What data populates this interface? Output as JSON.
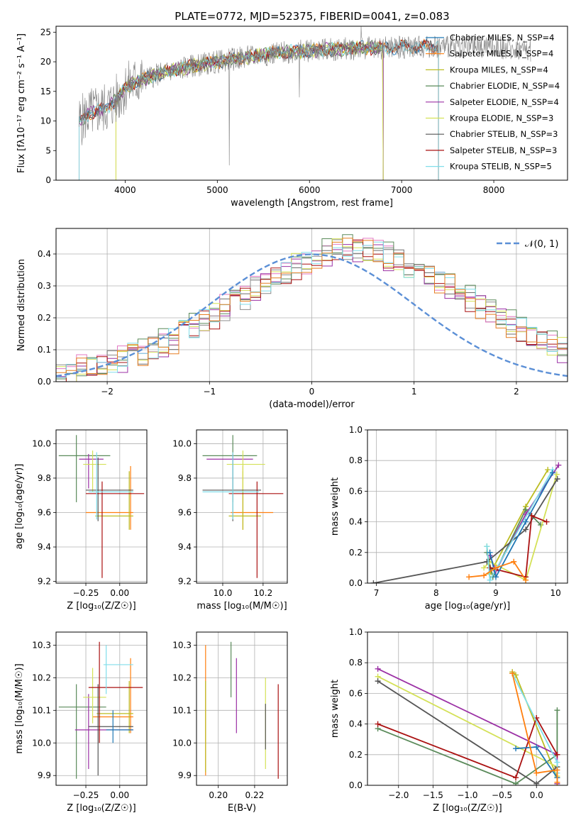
{
  "colors": {
    "grid": "#b0b0b0",
    "spectrum": "#808080",
    "ssp": [
      "#1f77b4",
      "#ff7f0e",
      "#bcbd22",
      "#5a8a5a",
      "#9b30a5",
      "#d4e157",
      "#555555",
      "#aa1111",
      "#80deea"
    ],
    "hist": [
      "#6e6e6e",
      "#e377c2",
      "#8c8c8c",
      "#5a8a5a",
      "#9b30a5",
      "#d4e157",
      "#aa1111",
      "#80deea",
      "#e67e22"
    ],
    "normal": "#5b8fd6"
  },
  "chart_data": [
    {
      "id": "spectrum",
      "type": "line",
      "title": "PLATE=0772, MJD=52375, FIBERID=0041, z=0.083",
      "xlabel": "wavelength [Angstrom, rest frame]",
      "ylabel": "Flux [fλ10⁻¹⁷ erg cm⁻² s⁻¹ A⁻¹]",
      "xlim": [
        3250,
        8800
      ],
      "ylim": [
        0,
        26
      ],
      "xticks": [
        4000,
        5000,
        6000,
        7000,
        8000
      ],
      "yticks": [
        0,
        5,
        10,
        15,
        20,
        25
      ],
      "data_range": [
        3500,
        8400
      ],
      "legend": [
        "Chabrier MILES, N_SSP=4",
        "Salpeter MILES, N_SSP=4",
        "Kroupa MILES, N_SSP=4",
        "Chabrier ELODIE, N_SSP=4",
        "Salpeter ELODIE, N_SSP=4",
        "Kroupa ELODIE, N_SSP=3",
        "Chabrier STELIB, N_SSP=3",
        "Salpeter STELIB, N_SSP=3",
        "Kroupa STELIB, N_SSP=5"
      ],
      "continuum": {
        "x": [
          3500,
          3600,
          3700,
          3800,
          3900,
          4000,
          4100,
          4300,
          4500,
          4800,
          5200,
          5600,
          6000,
          6400,
          6800,
          7200,
          7600,
          8000,
          8400
        ],
        "y": [
          9.8,
          11.2,
          11.8,
          12.3,
          13.5,
          15.6,
          16.5,
          17.6,
          18.5,
          19.5,
          20.5,
          21.4,
          21.9,
          22.2,
          22.4,
          22.6,
          22.6,
          22.5,
          22.0
        ]
      },
      "model_cutoffs": {
        "start": [
          3500,
          3500,
          3900,
          3500,
          3500,
          3900,
          3500,
          3500,
          3500
        ],
        "end": [
          7400,
          7400,
          6800,
          6800,
          6800,
          6800,
          7400,
          7400,
          7400
        ]
      }
    },
    {
      "id": "residuals",
      "type": "line",
      "xlabel": "(data-model)/error",
      "ylabel": "Normed distribution",
      "xlim": [
        -2.5,
        2.5
      ],
      "ylim": [
        0,
        0.48
      ],
      "xticks": [
        -2,
        -1,
        0,
        1,
        2
      ],
      "yticks": [
        0.0,
        0.1,
        0.2,
        0.3,
        0.4
      ],
      "legend": [
        "𝒩(0, 1)"
      ],
      "bin_width": 0.1,
      "bin_start": -2.5,
      "base": [
        0.02,
        0.03,
        0.04,
        0.05,
        0.05,
        0.06,
        0.07,
        0.08,
        0.09,
        0.1,
        0.12,
        0.13,
        0.15,
        0.17,
        0.19,
        0.21,
        0.23,
        0.25,
        0.27,
        0.29,
        0.31,
        0.33,
        0.35,
        0.36,
        0.37,
        0.39,
        0.4,
        0.41,
        0.42,
        0.42,
        0.41,
        0.4,
        0.39,
        0.38,
        0.36,
        0.35,
        0.33,
        0.31,
        0.3,
        0.28,
        0.26,
        0.24,
        0.22,
        0.2,
        0.18,
        0.16,
        0.14,
        0.13,
        0.11,
        0.1,
        0.08,
        0.07,
        0.06,
        0.05,
        0.04,
        0.04,
        0.03,
        0.03,
        0.02,
        0.02
      ],
      "offsets": [
        0.0,
        0.02,
        -0.015,
        0.03,
        -0.02,
        0.01,
        -0.025,
        0.015,
        -0.01,
        0.025
      ]
    },
    {
      "id": "age_vs_Z",
      "type": "scatter",
      "xlabel": "Z [log₁₀(Z/Z☉)]",
      "ylabel": "age  [log₁₀(age/yr)]",
      "xlim": [
        -0.47,
        0.2
      ],
      "ylim": [
        9.19,
        10.08
      ],
      "xticks": [
        -0.25,
        0.0
      ],
      "yticks": [
        9.2,
        9.4,
        9.6,
        9.8,
        10.0
      ],
      "points": [
        {
          "x": 0.08,
          "y": 9.6,
          "xl": -0.25,
          "xh": 0.1,
          "yl": 9.5,
          "yh": 9.87
        },
        {
          "x": 0.07,
          "y": 9.58,
          "xl": -0.18,
          "xh": 0.1,
          "yl": 9.5,
          "yh": 9.84
        },
        {
          "x": -0.32,
          "y": 9.93,
          "xl": -0.45,
          "xh": -0.07,
          "yl": 9.66,
          "yh": 10.05
        },
        {
          "x": -0.23,
          "y": 9.91,
          "xl": -0.3,
          "xh": -0.12,
          "yl": 9.74,
          "yh": 9.94
        },
        {
          "x": -0.2,
          "y": 9.88,
          "xl": -0.27,
          "xh": -0.1,
          "yl": 9.72,
          "yh": 9.96
        },
        {
          "x": -0.16,
          "y": 9.73,
          "xl": -0.25,
          "xh": 0.1,
          "yl": 9.55,
          "yh": 9.92
        },
        {
          "x": -0.13,
          "y": 9.71,
          "xl": -0.25,
          "xh": 0.18,
          "yl": 9.22,
          "yh": 9.78
        },
        {
          "x": -0.17,
          "y": 9.72,
          "xl": -0.23,
          "xh": 0.1,
          "yl": 9.56,
          "yh": 9.95
        }
      ]
    },
    {
      "id": "age_vs_mass",
      "type": "scatter",
      "xlabel": "mass [log₁₀(M/M☉)]",
      "ylabel": "",
      "xlim": [
        9.87,
        10.32
      ],
      "ylim": [
        9.19,
        10.08
      ],
      "xticks": [
        10.0,
        10.2
      ],
      "yticks": [
        9.2,
        9.4,
        9.6,
        9.8,
        10.0
      ],
      "points": [
        {
          "x": 10.1,
          "y": 9.6,
          "xl": 10.04,
          "xh": 10.25,
          "yl": 9.5,
          "yh": 9.87
        },
        {
          "x": 10.1,
          "y": 9.58,
          "xl": 10.03,
          "xh": 10.19,
          "yl": 9.5,
          "yh": 9.84
        },
        {
          "x": 10.05,
          "y": 9.93,
          "xl": 9.9,
          "xh": 10.17,
          "yl": 9.66,
          "yh": 10.05
        },
        {
          "x": 10.05,
          "y": 9.91,
          "xl": 9.92,
          "xh": 10.15,
          "yl": 9.74,
          "yh": 9.94
        },
        {
          "x": 10.1,
          "y": 9.88,
          "xl": 10.02,
          "xh": 10.21,
          "yl": 9.72,
          "yh": 9.96
        },
        {
          "x": 10.05,
          "y": 9.73,
          "xl": 9.9,
          "xh": 10.19,
          "yl": 9.55,
          "yh": 9.92
        },
        {
          "x": 10.17,
          "y": 9.71,
          "xl": 10.03,
          "xh": 10.3,
          "yl": 9.22,
          "yh": 9.78
        },
        {
          "x": 10.05,
          "y": 9.72,
          "xl": 9.9,
          "xh": 10.18,
          "yl": 9.56,
          "yh": 9.95
        }
      ]
    },
    {
      "id": "mass_weight_vs_age",
      "type": "line",
      "xlabel": "age  [log₁₀(age/yr)]",
      "ylabel": "mass weight",
      "xlim": [
        6.85,
        10.2
      ],
      "ylim": [
        0,
        1
      ],
      "xticks": [
        7,
        8,
        9,
        10
      ],
      "yticks": [
        0.0,
        0.2,
        0.4,
        0.6,
        0.8,
        1.0
      ],
      "series": [
        {
          "x": [
            8.85,
            8.9,
            9.5,
            9.87
          ],
          "y": [
            0.24,
            0.06,
            0.5,
            0.74
          ]
        },
        {
          "x": [
            8.85,
            8.95,
            9.5,
            9.75
          ],
          "y": [
            0.2,
            0.04,
            0.48,
            0.38
          ]
        },
        {
          "x": [
            8.9,
            9.0,
            9.5,
            10.05
          ],
          "y": [
            0.18,
            0.08,
            0.45,
            0.77
          ]
        },
        {
          "x": [
            8.8,
            8.9,
            9.5,
            10.02
          ],
          "y": [
            0.1,
            0.14,
            0.02,
            0.71
          ]
        },
        {
          "x": [
            6.95,
            8.85,
            9.5,
            10.03
          ],
          "y": [
            0.0,
            0.14,
            0.35,
            0.68
          ]
        },
        {
          "x": [
            8.9,
            9.5,
            9.6,
            9.85
          ],
          "y": [
            0.1,
            0.04,
            0.44,
            0.4
          ]
        },
        {
          "x": [
            8.85,
            8.9,
            9.95
          ],
          "y": [
            0.24,
            0.02,
            0.74
          ]
        },
        {
          "x": [
            8.9,
            9.0,
            9.5,
            9.95
          ],
          "y": [
            0.2,
            0.04,
            0.4,
            0.72
          ]
        },
        {
          "x": [
            8.55,
            8.8,
            9.0,
            9.3,
            9.5
          ],
          "y": [
            0.04,
            0.05,
            0.1,
            0.14,
            0.02
          ]
        }
      ]
    },
    {
      "id": "mass_vs_Z",
      "type": "scatter",
      "xlabel": "Z [log₁₀(Z/Z☉)]",
      "ylabel": "mass [log₁₀(M/M☉)]",
      "xlim": [
        -0.47,
        0.2
      ],
      "ylim": [
        9.87,
        10.34
      ],
      "xticks": [
        -0.25,
        0.0
      ],
      "yticks": [
        9.9,
        10.0,
        10.1,
        10.2,
        10.3
      ],
      "points": [
        {
          "x": 0.08,
          "y": 10.08,
          "xl": -0.2,
          "xh": 0.1,
          "yl": 10.03,
          "yh": 10.26
        },
        {
          "x": 0.07,
          "y": 10.09,
          "xl": -0.17,
          "xh": 0.1,
          "yl": 10.03,
          "yh": 10.19
        },
        {
          "x": -0.32,
          "y": 10.11,
          "xl": -0.45,
          "xh": -0.1,
          "yl": 9.89,
          "yh": 10.18
        },
        {
          "x": -0.23,
          "y": 10.04,
          "xl": -0.33,
          "xh": 0.1,
          "yl": 9.92,
          "yh": 10.15
        },
        {
          "x": -0.2,
          "y": 10.14,
          "xl": -0.27,
          "xh": -0.1,
          "yl": 10.06,
          "yh": 10.23
        },
        {
          "x": -0.16,
          "y": 10.05,
          "xl": -0.23,
          "xh": 0.1,
          "yl": 9.9,
          "yh": 10.18
        },
        {
          "x": -0.15,
          "y": 10.17,
          "xl": -0.23,
          "xh": 0.17,
          "yl": 10.0,
          "yh": 10.31
        },
        {
          "x": -0.1,
          "y": 10.24,
          "xl": -0.12,
          "xh": 0.1,
          "yl": 10.15,
          "yh": 10.3
        },
        {
          "x": -0.05,
          "y": 10.04,
          "xl": -0.1,
          "xh": 0.1,
          "yl": 10.0,
          "yh": 10.1
        }
      ]
    },
    {
      "id": "mass_vs_ebv",
      "type": "scatter",
      "xlabel": "E(B-V)",
      "ylabel": "",
      "xlim": [
        0.188,
        0.238
      ],
      "ylim": [
        9.87,
        10.34
      ],
      "xticks": [
        0.2,
        0.22
      ],
      "yticks": [
        9.9,
        10.0,
        10.1,
        10.2,
        10.3
      ],
      "points": [
        {
          "x": 0.193,
          "y": 10.1,
          "yl": 9.9,
          "yh": 10.3
        },
        {
          "x": 0.193,
          "y": 10.05,
          "yl": 9.91,
          "yh": 10.19
        },
        {
          "x": 0.207,
          "y": 10.23,
          "yl": 10.14,
          "yh": 10.31
        },
        {
          "x": 0.21,
          "y": 10.15,
          "yl": 10.03,
          "yh": 10.26
        },
        {
          "x": 0.226,
          "y": 10.1,
          "yl": 9.92,
          "yh": 10.2
        },
        {
          "x": 0.226,
          "y": 10.05,
          "yl": 9.98,
          "yh": 10.12
        },
        {
          "x": 0.233,
          "y": 10.05,
          "yl": 9.89,
          "yh": 10.18
        }
      ]
    },
    {
      "id": "mass_weight_vs_Z",
      "type": "line",
      "xlabel": "Z [log₁₀(Z/Z☉)]",
      "ylabel": "mass weight",
      "xlim": [
        -2.45,
        0.45
      ],
      "ylim": [
        0,
        1
      ],
      "xticks": [
        -2.0,
        -1.5,
        -1.0,
        -0.5,
        0.0
      ],
      "yticks": [
        0.0,
        0.2,
        0.4,
        0.6,
        0.8,
        1.0
      ],
      "series": [
        {
          "x": [
            -0.35,
            -0.3,
            0.3,
            0.3
          ],
          "y": [
            0.74,
            0.72,
            0.05,
            0.01
          ]
        },
        {
          "x": [
            -2.3,
            -0.3,
            0.3,
            0.3
          ],
          "y": [
            0.37,
            0.01,
            0.2,
            0.49
          ]
        },
        {
          "x": [
            -2.3,
            0.3,
            0.3
          ],
          "y": [
            0.76,
            0.2,
            0.01
          ]
        },
        {
          "x": [
            -2.3,
            0.3,
            0.3
          ],
          "y": [
            0.71,
            0.12,
            0.06
          ]
        },
        {
          "x": [
            -2.3,
            0.0,
            0.3
          ],
          "y": [
            0.68,
            0.01,
            0.12
          ]
        },
        {
          "x": [
            -2.3,
            -0.3,
            0.0,
            0.3
          ],
          "y": [
            0.4,
            0.05,
            0.44,
            0.2
          ]
        },
        {
          "x": [
            -0.35,
            0.3,
            0.3
          ],
          "y": [
            0.73,
            0.15,
            0.08
          ]
        },
        {
          "x": [
            -0.3,
            0.0,
            0.3
          ],
          "y": [
            0.24,
            0.25,
            0.05
          ]
        },
        {
          "x": [
            -0.35,
            0.0,
            0.3,
            0.3
          ],
          "y": [
            0.73,
            0.08,
            0.1,
            0.02
          ]
        }
      ]
    }
  ]
}
